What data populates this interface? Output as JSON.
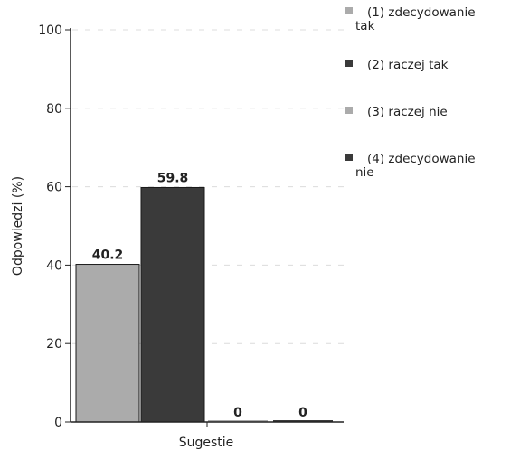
{
  "chart_data": {
    "type": "bar",
    "title": "",
    "xlabel": "Sugestie",
    "ylabel": "Odpowiedzi (%)",
    "ylim": [
      0,
      100
    ],
    "yticks": [
      0,
      20,
      40,
      60,
      80,
      100
    ],
    "grid": true,
    "legend_position": "top-right",
    "categories": [
      "Sugestie"
    ],
    "series": [
      {
        "name": "(1) zdecydowanie tak",
        "values": [
          40.2
        ],
        "data_label": "40.2",
        "color": "#ababab"
      },
      {
        "name": "(2) raczej tak",
        "values": [
          59.8
        ],
        "data_label": "59.8",
        "color": "#3a3a3a"
      },
      {
        "name": "(3) raczej nie",
        "values": [
          0
        ],
        "data_label": "0",
        "color": "#ababab"
      },
      {
        "name": "(4) zdecydowanie nie",
        "values": [
          0
        ],
        "data_label": "0",
        "color": "#3a3a3a"
      }
    ]
  }
}
